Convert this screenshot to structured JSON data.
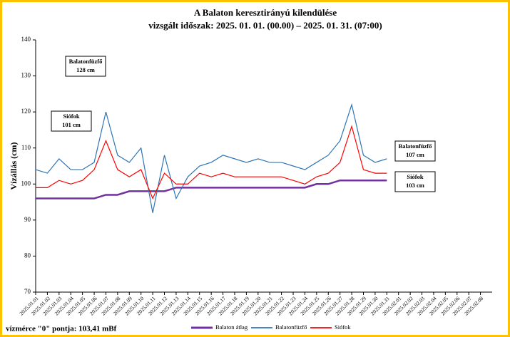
{
  "chart_data": {
    "type": "line",
    "title": "A Balaton keresztirányú kilendülése",
    "subtitle": "vizsgált időszak: 2025. 01. 01. (00.00) – 2025. 01. 31. (07:00)",
    "y_label": "Vízállás (cm)",
    "footer": "vízmérce \"0\" pontja: 103,41 mBf",
    "categories": [
      "2025.01.01",
      "2025.01.02",
      "2025.01.03",
      "2025.01.04",
      "2025.01.05",
      "2025.01.06",
      "2025.01.07",
      "2025.01.08",
      "2025.01.09",
      "2025.01.10",
      "2025.01.11",
      "2025.01.12",
      "2025.01.13",
      "2025.01.14",
      "2025.01.15",
      "2025.01.16",
      "2025.01.17",
      "2025.01.18",
      "2025.01.19",
      "2025.01.20",
      "2025.01.21",
      "2025.01.22",
      "2025.01.23",
      "2025.01.24",
      "2025.01.25",
      "2025.01.26",
      "2025.01.27",
      "2025.01.28",
      "2025.01.29",
      "2025.01.30",
      "2025.01.31",
      "2025.02.01",
      "2025.02.02",
      "2025.02.03",
      "2025.02.04",
      "2025.02.05",
      "2025.02.06",
      "2025.02.07",
      "2025.02.08"
    ],
    "series": [
      {
        "name": "Balaton átlag",
        "color": "#7030a0",
        "width": 2.5,
        "values": [
          96,
          96,
          96,
          96,
          96,
          96,
          97,
          97,
          98,
          98,
          98,
          98,
          99,
          99,
          99,
          99,
          99,
          99,
          99,
          99,
          99,
          99,
          99,
          99,
          100,
          100,
          101,
          101,
          101,
          101,
          101,
          null,
          null,
          null,
          null,
          null,
          null,
          null,
          null
        ]
      },
      {
        "name": "Balatonfüzfő",
        "color": "#2e75b6",
        "width": 1.2,
        "values": [
          104,
          103,
          107,
          104,
          104,
          106,
          120,
          108,
          106,
          110,
          92,
          108,
          96,
          102,
          105,
          106,
          108,
          107,
          106,
          107,
          106,
          106,
          105,
          104,
          106,
          108,
          112,
          122,
          108,
          106,
          107,
          null,
          null,
          null,
          null,
          null,
          null,
          null,
          null
        ]
      },
      {
        "name": "Siófok",
        "color": "#ff0000",
        "width": 1.2,
        "values": [
          99,
          99,
          101,
          100,
          101,
          104,
          112,
          104,
          102,
          104,
          96,
          103,
          100,
          100,
          103,
          102,
          103,
          102,
          102,
          102,
          102,
          102,
          101,
          100,
          102,
          103,
          106,
          116,
          104,
          103,
          103,
          null,
          null,
          null,
          null,
          null,
          null,
          null,
          null
        ]
      }
    ],
    "annotations": [
      {
        "lines": [
          "Balatonfüzfő",
          "128 cm"
        ]
      },
      {
        "lines": [
          "Siófok",
          "101 cm"
        ]
      },
      {
        "lines": [
          "Balatonfüzfő",
          "107 cm"
        ]
      },
      {
        "lines": [
          "Siófok",
          "103 cm"
        ]
      }
    ],
    "ylim": [
      70,
      140
    ],
    "yticks": [
      70,
      80,
      90,
      100,
      110,
      120,
      130,
      140
    ],
    "grid": false,
    "legend": "bottom"
  }
}
